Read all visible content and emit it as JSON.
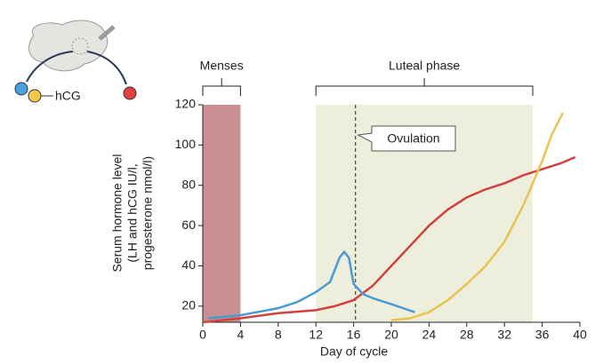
{
  "illustration": {
    "label": "hCG"
  },
  "chart_data": {
    "type": "line",
    "y_label": [
      "Serum hormone level",
      "(LH and hCG IU/l,",
      "progesterone nmol/l)"
    ],
    "x_label": "Day of cycle",
    "xlim": [
      0,
      40
    ],
    "xticks": [
      0,
      4,
      8,
      12,
      16,
      20,
      24,
      28,
      32,
      36,
      40
    ],
    "ylim": [
      12,
      120
    ],
    "yticks": [
      20,
      40,
      60,
      80,
      100,
      120
    ],
    "regions": [
      {
        "label": "Menses",
        "x": [
          0,
          4
        ],
        "color": "#c98f93"
      },
      {
        "label": "Luteal phase",
        "x": [
          12,
          35
        ],
        "color": "#eeeedd"
      }
    ],
    "marker": {
      "label": "Ovulation",
      "x": 16.2
    },
    "series": [
      {
        "color": "#d0413f",
        "x": [
          0,
          4,
          8,
          12,
          14,
          16,
          18,
          20,
          22,
          24,
          26,
          28,
          30,
          32,
          34,
          36,
          38,
          39.5
        ],
        "values": [
          12,
          14,
          16.5,
          18,
          20,
          23,
          30,
          40,
          50,
          60,
          68,
          74,
          78,
          81,
          85,
          88,
          91,
          94
        ]
      },
      {
        "color": "#4a9bd1",
        "x": [
          0.5,
          4,
          8,
          10,
          12,
          13.5,
          14.5,
          15,
          15.5,
          16,
          17,
          18,
          20,
          22.5
        ],
        "values": [
          14,
          15.5,
          19,
          22,
          27,
          32,
          44,
          47,
          44,
          31,
          26,
          24,
          21,
          17
        ]
      },
      {
        "color": "#e8c350",
        "x": [
          20,
          22,
          24,
          26,
          28,
          30,
          32,
          34,
          36,
          37,
          38.2
        ],
        "values": [
          13,
          14,
          17,
          23,
          31,
          40,
          52,
          70,
          92,
          105,
          116
        ]
      }
    ]
  }
}
